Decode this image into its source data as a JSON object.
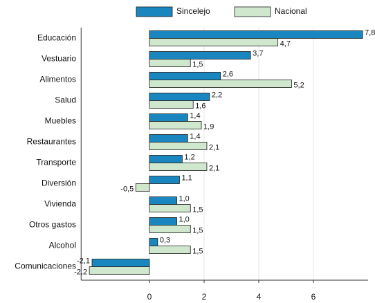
{
  "chart_data": {
    "type": "hbar",
    "categories": [
      "Educación",
      "Vestuario",
      "Alimentos",
      "Salud",
      "Muebles",
      "Restaurantes",
      "Transporte",
      "Diversión",
      "Vivienda",
      "Otros gastos",
      "Alcohol",
      "Comunicaciones"
    ],
    "series": [
      {
        "name": "Sincelejo",
        "color": "#1a86c0",
        "values": [
          7.8,
          3.7,
          2.6,
          2.2,
          1.4,
          1.4,
          1.2,
          1.1,
          1.0,
          1.0,
          0.3,
          -2.1
        ],
        "value_labels": [
          "7,8",
          "3,7",
          "2,6",
          "2,2",
          "1,4",
          "1,4",
          "1,2",
          "1,1",
          "1,0",
          "1,0",
          "0,3",
          "-2,1"
        ]
      },
      {
        "name": "Nacional",
        "color": "#cfe7cd",
        "values": [
          4.7,
          1.5,
          5.2,
          1.6,
          1.9,
          2.1,
          2.1,
          -0.5,
          1.5,
          1.5,
          1.5,
          -2.2
        ],
        "value_labels": [
          "4,7",
          "1,5",
          "5,2",
          "1,6",
          "1,9",
          "2,1",
          "2,1",
          "-0,5",
          "1,5",
          "1,5",
          "1,5",
          "-2,2"
        ]
      }
    ],
    "xlim": [
      -2.5,
      8
    ],
    "xticks": [
      0,
      2,
      4,
      6
    ],
    "grid": true,
    "legend": "top"
  }
}
